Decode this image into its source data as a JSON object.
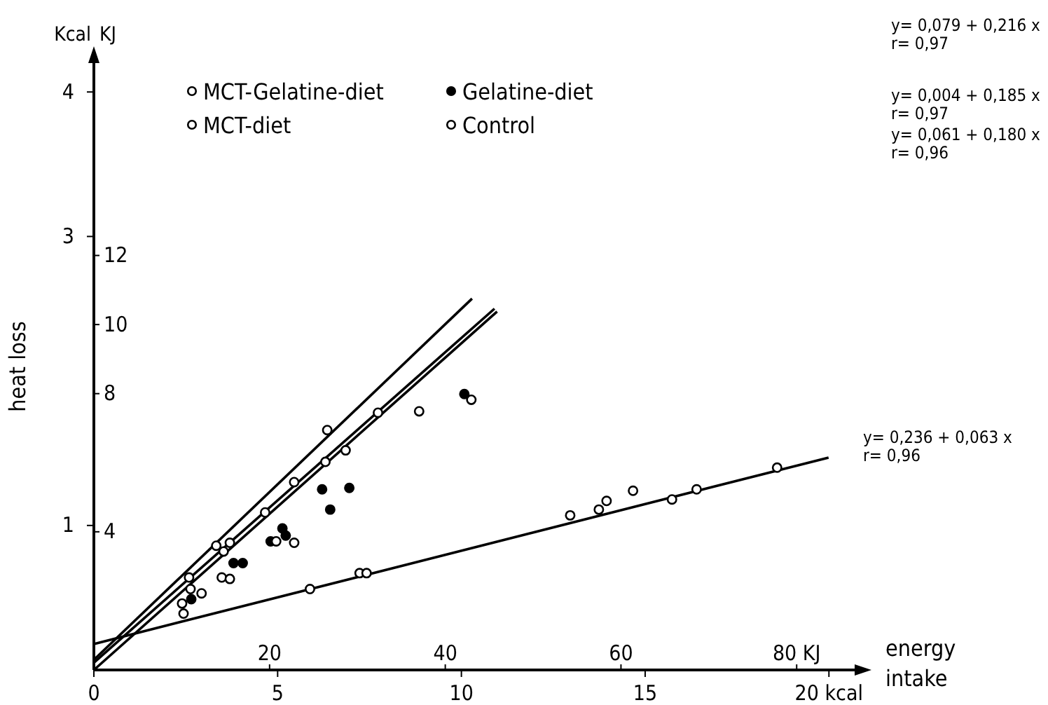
{
  "chart_data": {
    "type": "scatter",
    "xlabel": "energy intake",
    "ylabel": "heat loss",
    "xlim": [
      0,
      20.7
    ],
    "xticks": [
      0,
      5,
      10,
      15,
      {
        "value": 20,
        "label": "20 kcal"
      }
    ],
    "x2lim": [
      0,
      86.6
    ],
    "x2ticks": [
      20,
      40,
      60,
      {
        "value": 80,
        "label": "80 KJ"
      }
    ],
    "ylim": [
      0,
      4.2
    ],
    "yticks": [
      1,
      3,
      4
    ],
    "y2lim": [
      0,
      17.57
    ],
    "y2ticks": [
      4,
      8,
      10,
      12
    ],
    "legend": "top left",
    "grid": false,
    "annotations": [
      "Kcal",
      "KJ",
      "y= 0,079 + 0,216 x",
      "r= 0,97",
      "y= 0,004 + 0,185 x",
      "r= 0,97",
      "y= 0,061 + 0,180 x",
      "r= 0,96",
      "y= 0,236 + 0,063 x",
      "r= 0,96"
    ],
    "series": [
      {
        "name": "MCT-Gelatine-diet",
        "color": "#000000",
        "marker": "circle-open",
        "x": [
          2.59,
          3.33,
          3.53,
          3.7,
          4.66,
          5.45,
          6.3,
          6.35,
          6.85,
          7.73,
          8.85
        ],
        "values": [
          0.64,
          0.86,
          0.82,
          0.88,
          1.09,
          1.3,
          1.44,
          1.66,
          1.52,
          1.78,
          1.79
        ]
      },
      {
        "name": "Gelatine-diet",
        "color": "#000000",
        "marker": "circle",
        "x": [
          2.65,
          3.8,
          4.05,
          4.81,
          5.13,
          5.22,
          6.21,
          6.43,
          6.95,
          10.08
        ],
        "values": [
          0.49,
          0.74,
          0.74,
          0.89,
          0.98,
          0.93,
          1.25,
          1.11,
          1.26,
          1.91
        ]
      },
      {
        "name": "MCT-diet",
        "color": "#000000",
        "marker": "circle-open",
        "x": [
          2.4,
          2.44,
          2.63,
          2.93,
          3.48,
          3.7,
          4.96,
          5.45,
          10.27
        ],
        "values": [
          0.46,
          0.39,
          0.56,
          0.53,
          0.64,
          0.63,
          0.89,
          0.88,
          1.87
        ]
      },
      {
        "name": "Control",
        "color": "#000000",
        "marker": "circle-open",
        "x": [
          5.88,
          7.23,
          7.42,
          12.96,
          13.74,
          13.95,
          14.67,
          15.73,
          16.4,
          18.59
        ],
        "values": [
          0.56,
          0.67,
          0.67,
          1.07,
          1.11,
          1.17,
          1.24,
          1.18,
          1.25,
          1.4
        ]
      },
      {
        "type": "line",
        "color": "#000000",
        "x": [
          0,
          10.29
        ],
        "values": [
          0.07,
          2.57
        ]
      },
      {
        "type": "line",
        "color": "#000000",
        "x": [
          0,
          10.9
        ],
        "values": [
          0.05,
          2.5
        ]
      },
      {
        "type": "line",
        "color": "#000000",
        "x": [
          0,
          10.97
        ],
        "values": [
          0,
          2.48
        ]
      },
      {
        "type": "line",
        "color": "#000000",
        "x": [
          0,
          19.99
        ],
        "values": [
          0.18,
          1.47
        ]
      }
    ]
  }
}
